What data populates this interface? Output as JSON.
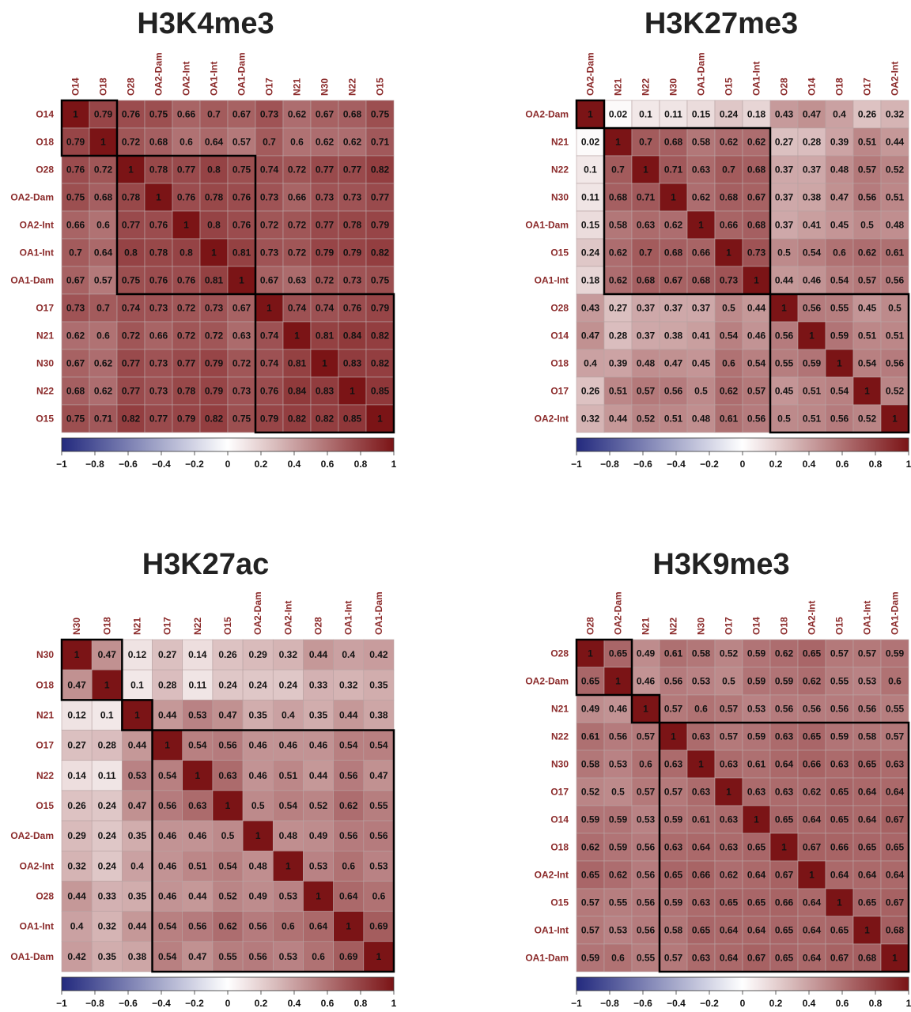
{
  "chart_data": [
    {
      "type": "heatmap",
      "title": "H3K4me3",
      "labels": [
        "O14",
        "O18",
        "O28",
        "OA2-Dam",
        "OA2-Int",
        "OA1-Int",
        "OA1-Dam",
        "O17",
        "N21",
        "N30",
        "N22",
        "O15"
      ],
      "matrix": [
        [
          1,
          0.79,
          0.76,
          0.75,
          0.66,
          0.7,
          0.67,
          0.73,
          0.62,
          0.67,
          0.68,
          0.75
        ],
        [
          0.79,
          1,
          0.72,
          0.68,
          0.6,
          0.64,
          0.57,
          0.7,
          0.6,
          0.62,
          0.62,
          0.71
        ],
        [
          0.76,
          0.72,
          1,
          0.78,
          0.77,
          0.8,
          0.75,
          0.74,
          0.72,
          0.77,
          0.77,
          0.82
        ],
        [
          0.75,
          0.68,
          0.78,
          1,
          0.76,
          0.78,
          0.76,
          0.73,
          0.66,
          0.73,
          0.73,
          0.77
        ],
        [
          0.66,
          0.6,
          0.77,
          0.76,
          1,
          0.8,
          0.76,
          0.72,
          0.72,
          0.77,
          0.78,
          0.79
        ],
        [
          0.7,
          0.64,
          0.8,
          0.78,
          0.8,
          1,
          0.81,
          0.73,
          0.72,
          0.79,
          0.79,
          0.82
        ],
        [
          0.67,
          0.57,
          0.75,
          0.76,
          0.76,
          0.81,
          1,
          0.67,
          0.63,
          0.72,
          0.73,
          0.75
        ],
        [
          0.73,
          0.7,
          0.74,
          0.73,
          0.72,
          0.73,
          0.67,
          1,
          0.74,
          0.74,
          0.76,
          0.79
        ],
        [
          0.62,
          0.6,
          0.72,
          0.66,
          0.72,
          0.72,
          0.63,
          0.74,
          1,
          0.81,
          0.84,
          0.82
        ],
        [
          0.67,
          0.62,
          0.77,
          0.73,
          0.77,
          0.79,
          0.72,
          0.74,
          0.81,
          1,
          0.83,
          0.82
        ],
        [
          0.68,
          0.62,
          0.77,
          0.73,
          0.78,
          0.79,
          0.73,
          0.76,
          0.84,
          0.83,
          1,
          0.85
        ],
        [
          0.75,
          0.71,
          0.82,
          0.77,
          0.79,
          0.82,
          0.75,
          0.79,
          0.82,
          0.82,
          0.85,
          1
        ]
      ],
      "clusters": [
        [
          0,
          1
        ],
        [
          2,
          6
        ],
        [
          7,
          11
        ]
      ],
      "colorbar_ticks": [
        "−1",
        "−0.8",
        "−0.6",
        "−0.4",
        "−0.2",
        "0",
        "0.2",
        "0.4",
        "0.6",
        "0.8",
        "1"
      ],
      "value_range": [
        -1,
        1
      ]
    },
    {
      "type": "heatmap",
      "title": "H3K27me3",
      "labels": [
        "OA2-Dam",
        "N21",
        "N22",
        "N30",
        "OA1-Dam",
        "O15",
        "OA1-Int",
        "O28",
        "O14",
        "O18",
        "O17",
        "OA2-Int"
      ],
      "matrix": [
        [
          1,
          0.02,
          0.1,
          0.11,
          0.15,
          0.24,
          0.18,
          0.43,
          0.47,
          0.4,
          0.26,
          0.32
        ],
        [
          0.02,
          1,
          0.7,
          0.68,
          0.58,
          0.62,
          0.62,
          0.27,
          0.28,
          0.39,
          0.51,
          0.44
        ],
        [
          0.1,
          0.7,
          1,
          0.71,
          0.63,
          0.7,
          0.68,
          0.37,
          0.37,
          0.48,
          0.57,
          0.52
        ],
        [
          0.11,
          0.68,
          0.71,
          1,
          0.62,
          0.68,
          0.67,
          0.37,
          0.38,
          0.47,
          0.56,
          0.51
        ],
        [
          0.15,
          0.58,
          0.63,
          0.62,
          1,
          0.66,
          0.68,
          0.37,
          0.41,
          0.45,
          0.5,
          0.48
        ],
        [
          0.24,
          0.62,
          0.7,
          0.68,
          0.66,
          1,
          0.73,
          0.5,
          0.54,
          0.6,
          0.62,
          0.61
        ],
        [
          0.18,
          0.62,
          0.68,
          0.67,
          0.68,
          0.73,
          1,
          0.44,
          0.46,
          0.54,
          0.57,
          0.56
        ],
        [
          0.43,
          0.27,
          0.37,
          0.37,
          0.37,
          0.5,
          0.44,
          1,
          0.56,
          0.55,
          0.45,
          0.5
        ],
        [
          0.47,
          0.28,
          0.37,
          0.38,
          0.41,
          0.54,
          0.46,
          0.56,
          1,
          0.59,
          0.51,
          0.51
        ],
        [
          0.4,
          0.39,
          0.48,
          0.47,
          0.45,
          0.6,
          0.54,
          0.55,
          0.59,
          1,
          0.54,
          0.56
        ],
        [
          0.26,
          0.51,
          0.57,
          0.56,
          0.5,
          0.62,
          0.57,
          0.45,
          0.51,
          0.54,
          1,
          0.52
        ],
        [
          0.32,
          0.44,
          0.52,
          0.51,
          0.48,
          0.61,
          0.56,
          0.5,
          0.51,
          0.56,
          0.52,
          1
        ]
      ],
      "clusters": [
        [
          0,
          0
        ],
        [
          1,
          6
        ],
        [
          7,
          11
        ]
      ],
      "colorbar_ticks": [
        "−1",
        "−0.8",
        "−0.6",
        "−0.4",
        "−0.2",
        "0",
        "0.2",
        "0.4",
        "0.6",
        "0.8",
        "1"
      ],
      "value_range": [
        -1,
        1
      ]
    },
    {
      "type": "heatmap",
      "title": "H3K27ac",
      "labels": [
        "N30",
        "O18",
        "N21",
        "O17",
        "N22",
        "O15",
        "OA2-Dam",
        "OA2-Int",
        "O28",
        "OA1-Int",
        "OA1-Dam"
      ],
      "matrix": [
        [
          1,
          0.47,
          0.12,
          0.27,
          0.14,
          0.26,
          0.29,
          0.32,
          0.44,
          0.4,
          0.42
        ],
        [
          0.47,
          1,
          0.1,
          0.28,
          0.11,
          0.24,
          0.24,
          0.24,
          0.33,
          0.32,
          0.35
        ],
        [
          0.12,
          0.1,
          1,
          0.44,
          0.53,
          0.47,
          0.35,
          0.4,
          0.35,
          0.44,
          0.38
        ],
        [
          0.27,
          0.28,
          0.44,
          1,
          0.54,
          0.56,
          0.46,
          0.46,
          0.46,
          0.54,
          0.54
        ],
        [
          0.14,
          0.11,
          0.53,
          0.54,
          1,
          0.63,
          0.46,
          0.51,
          0.44,
          0.56,
          0.47
        ],
        [
          0.26,
          0.24,
          0.47,
          0.56,
          0.63,
          1,
          0.5,
          0.54,
          0.52,
          0.62,
          0.55
        ],
        [
          0.29,
          0.24,
          0.35,
          0.46,
          0.46,
          0.5,
          1,
          0.48,
          0.49,
          0.56,
          0.56
        ],
        [
          0.32,
          0.24,
          0.4,
          0.46,
          0.51,
          0.54,
          0.48,
          1,
          0.53,
          0.6,
          0.53
        ],
        [
          0.44,
          0.33,
          0.35,
          0.46,
          0.44,
          0.52,
          0.49,
          0.53,
          1,
          0.64,
          0.6
        ],
        [
          0.4,
          0.32,
          0.44,
          0.54,
          0.56,
          0.62,
          0.56,
          0.6,
          0.64,
          1,
          0.69
        ],
        [
          0.42,
          0.35,
          0.38,
          0.54,
          0.47,
          0.55,
          0.56,
          0.53,
          0.6,
          0.69,
          1
        ]
      ],
      "clusters": [
        [
          0,
          1
        ],
        [
          2,
          2
        ],
        [
          3,
          10
        ]
      ],
      "colorbar_ticks": [
        "−1",
        "−0.8",
        "−0.6",
        "−0.4",
        "−0.2",
        "0",
        "0.2",
        "0.4",
        "0.6",
        "0.8",
        "1"
      ],
      "value_range": [
        -1,
        1
      ]
    },
    {
      "type": "heatmap",
      "title": "H3K9me3",
      "labels": [
        "O28",
        "OA2-Dam",
        "N21",
        "N22",
        "N30",
        "O17",
        "O14",
        "O18",
        "OA2-Int",
        "O15",
        "OA1-Int",
        "OA1-Dam"
      ],
      "matrix": [
        [
          1,
          0.65,
          0.49,
          0.61,
          0.58,
          0.52,
          0.59,
          0.62,
          0.65,
          0.57,
          0.57,
          0.59
        ],
        [
          0.65,
          1,
          0.46,
          0.56,
          0.53,
          0.5,
          0.59,
          0.59,
          0.62,
          0.55,
          0.53,
          0.6
        ],
        [
          0.49,
          0.46,
          1,
          0.57,
          0.6,
          0.57,
          0.53,
          0.56,
          0.56,
          0.56,
          0.56,
          0.55
        ],
        [
          0.61,
          0.56,
          0.57,
          1,
          0.63,
          0.57,
          0.59,
          0.63,
          0.65,
          0.59,
          0.58,
          0.57
        ],
        [
          0.58,
          0.53,
          0.6,
          0.63,
          1,
          0.63,
          0.61,
          0.64,
          0.66,
          0.63,
          0.65,
          0.63
        ],
        [
          0.52,
          0.5,
          0.57,
          0.57,
          0.63,
          1,
          0.63,
          0.63,
          0.62,
          0.65,
          0.64,
          0.64
        ],
        [
          0.59,
          0.59,
          0.53,
          0.59,
          0.61,
          0.63,
          1,
          0.65,
          0.64,
          0.65,
          0.64,
          0.67
        ],
        [
          0.62,
          0.59,
          0.56,
          0.63,
          0.64,
          0.63,
          0.65,
          1,
          0.67,
          0.66,
          0.65,
          0.65
        ],
        [
          0.65,
          0.62,
          0.56,
          0.65,
          0.66,
          0.62,
          0.64,
          0.67,
          1,
          0.64,
          0.64,
          0.64
        ],
        [
          0.57,
          0.55,
          0.56,
          0.59,
          0.63,
          0.65,
          0.65,
          0.66,
          0.64,
          1,
          0.65,
          0.67
        ],
        [
          0.57,
          0.53,
          0.56,
          0.58,
          0.65,
          0.64,
          0.64,
          0.65,
          0.64,
          0.65,
          1,
          0.68
        ],
        [
          0.59,
          0.6,
          0.55,
          0.57,
          0.63,
          0.64,
          0.67,
          0.65,
          0.64,
          0.67,
          0.68,
          1
        ]
      ],
      "clusters": [
        [
          0,
          1
        ],
        [
          2,
          2
        ],
        [
          3,
          11
        ]
      ],
      "colorbar_ticks": [
        "−1",
        "−0.8",
        "−0.6",
        "−0.4",
        "−0.2",
        "0",
        "0.2",
        "0.4",
        "0.6",
        "0.8",
        "1"
      ],
      "value_range": [
        -1,
        1
      ]
    }
  ],
  "colors": {
    "negative": "#232a7e",
    "zero": "#ffffff",
    "positive": "#7b1416",
    "label": "#8b2a2a",
    "cluster_border": "#000000",
    "cell_grid": "#b8a3a3"
  }
}
